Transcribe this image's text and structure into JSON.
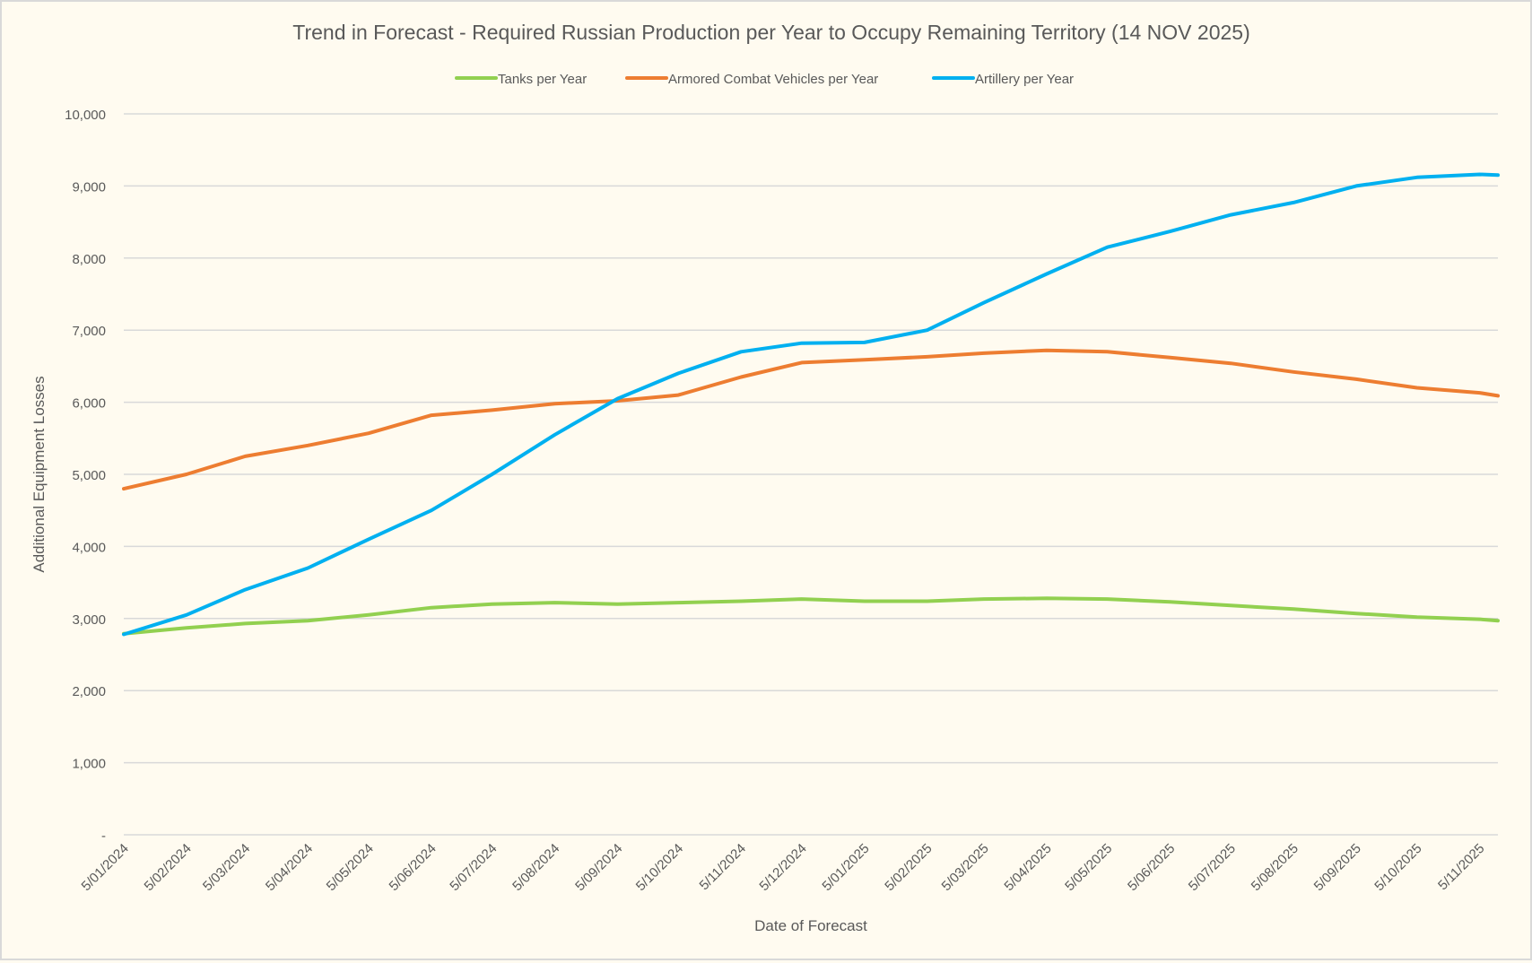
{
  "chart_data": {
    "type": "line",
    "title": "Trend in Forecast - Required Russian Production per Year to Occupy Remaining Territory (14 NOV 2025)",
    "xlabel": "Date of Forecast",
    "ylabel": "Additional Equipment Losses",
    "ylim": [
      0,
      10000
    ],
    "yticks": [
      0,
      1000,
      2000,
      3000,
      4000,
      5000,
      6000,
      7000,
      8000,
      9000,
      10000
    ],
    "ytick_labels": [
      "-",
      "1,000",
      "2,000",
      "3,000",
      "4,000",
      "5,000",
      "6,000",
      "7,000",
      "8,000",
      "9,000",
      "10,000"
    ],
    "xtick_labels": [
      "5/01/2024",
      "5/02/2024",
      "5/03/2024",
      "5/04/2024",
      "5/05/2024",
      "5/06/2024",
      "5/07/2024",
      "5/08/2024",
      "5/09/2024",
      "5/10/2024",
      "5/11/2024",
      "5/12/2024",
      "5/01/2025",
      "5/02/2025",
      "5/03/2025",
      "5/04/2025",
      "5/05/2025",
      "5/06/2025",
      "5/07/2025",
      "5/08/2025",
      "5/09/2025",
      "5/10/2025",
      "5/11/2025"
    ],
    "xtick_dates": [
      "2024-01-05",
      "2024-02-05",
      "2024-03-05",
      "2024-04-05",
      "2024-05-05",
      "2024-06-05",
      "2024-07-05",
      "2024-08-05",
      "2024-09-05",
      "2024-10-05",
      "2024-11-05",
      "2024-12-05",
      "2025-01-05",
      "2025-02-05",
      "2025-03-05",
      "2025-04-05",
      "2025-05-05",
      "2025-06-05",
      "2025-07-05",
      "2025-08-05",
      "2025-09-05",
      "2025-10-05",
      "2025-11-05"
    ],
    "x": [
      "2024-01-05",
      "2024-02-05",
      "2024-03-05",
      "2024-04-05",
      "2024-05-05",
      "2024-06-05",
      "2024-07-05",
      "2024-08-05",
      "2024-09-05",
      "2024-10-05",
      "2024-11-05",
      "2024-12-05",
      "2025-01-05",
      "2025-02-05",
      "2025-03-05",
      "2025-04-05",
      "2025-05-05",
      "2025-06-05",
      "2025-07-05",
      "2025-08-05",
      "2025-09-05",
      "2025-10-05",
      "2025-11-05",
      "2025-11-14"
    ],
    "grid": true,
    "legend_position": "top",
    "series": [
      {
        "name": "Tanks per Year",
        "color": "#92d050",
        "values": [
          2790,
          2870,
          2930,
          2970,
          3050,
          3150,
          3200,
          3220,
          3200,
          3220,
          3240,
          3270,
          3240,
          3240,
          3270,
          3280,
          3270,
          3230,
          3180,
          3130,
          3070,
          3020,
          2990,
          2970
        ]
      },
      {
        "name": "Armored Combat Vehicles per Year",
        "color": "#ed7d31",
        "values": [
          4800,
          5000,
          5250,
          5400,
          5570,
          5820,
          5890,
          5980,
          6020,
          6100,
          6350,
          6550,
          6590,
          6630,
          6680,
          6720,
          6700,
          6620,
          6540,
          6420,
          6320,
          6200,
          6130,
          6090
        ]
      },
      {
        "name": "Artillery per Year",
        "color": "#00b0f0",
        "values": [
          2780,
          3050,
          3400,
          3700,
          4100,
          4500,
          5000,
          5550,
          6050,
          6400,
          6700,
          6820,
          6830,
          7000,
          7380,
          7780,
          8150,
          8370,
          8600,
          8770,
          9000,
          9120,
          9160,
          9150
        ]
      }
    ]
  }
}
